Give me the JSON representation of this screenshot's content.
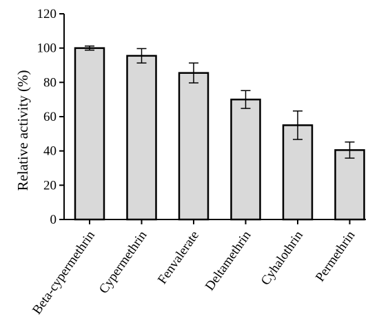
{
  "chart_data": {
    "type": "bar",
    "title": "",
    "xlabel": "",
    "ylabel": "Relative activity (%)",
    "ylim": [
      0,
      120
    ],
    "yticks": [
      0,
      20,
      40,
      60,
      80,
      100,
      120
    ],
    "categories": [
      "Beta-cypermethrin",
      "Cypermethrin",
      "Fenvalerate",
      "Deltamethrin",
      "Cyhalothrin",
      "Permethrin"
    ],
    "values": [
      100,
      95.5,
      85.5,
      70,
      55,
      40.5
    ],
    "errors": [
      1.2,
      4.2,
      5.8,
      5.2,
      8.3,
      4.7
    ],
    "bar_color": "#d9d9d9",
    "edge_color": "#000000",
    "grid": false
  }
}
